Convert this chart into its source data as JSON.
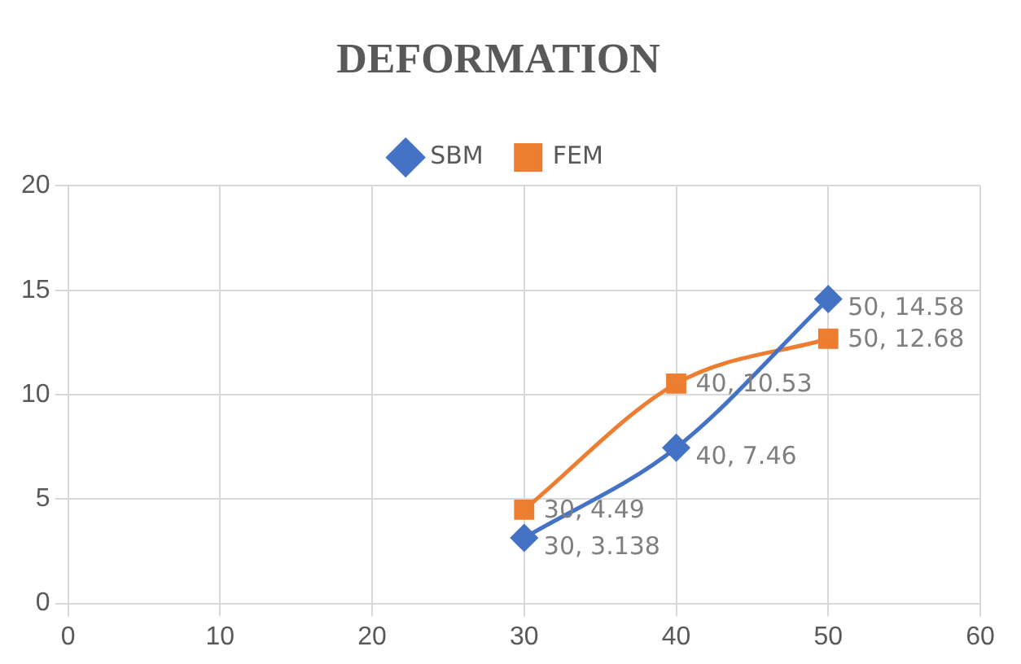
{
  "chart_data": {
    "type": "scatter",
    "title": "DEFORMATION",
    "xlim": [
      0,
      60
    ],
    "xticks": [
      0,
      10,
      20,
      30,
      40,
      50,
      60
    ],
    "ylim": [
      0,
      20
    ],
    "yticks": [
      0,
      5,
      10,
      15,
      20
    ],
    "grid": true,
    "legend": "top",
    "line_style": "solid",
    "series": [
      {
        "name": "SBM",
        "type": "line",
        "marker": "diamond",
        "color": "#4472c4",
        "x": [
          30,
          40,
          50
        ],
        "values": [
          3.138,
          7.46,
          14.58
        ],
        "value_labels": [
          "30, 3.138",
          "40, 7.46",
          "50, 14.58"
        ]
      },
      {
        "name": "FEM",
        "type": "line",
        "marker": "square",
        "color": "#ed7d31",
        "x": [
          30,
          40,
          50
        ],
        "values": [
          4.49,
          10.53,
          12.68
        ],
        "value_labels": [
          "30, 4.49",
          "40, 10.53",
          "50, 12.68"
        ]
      }
    ]
  }
}
